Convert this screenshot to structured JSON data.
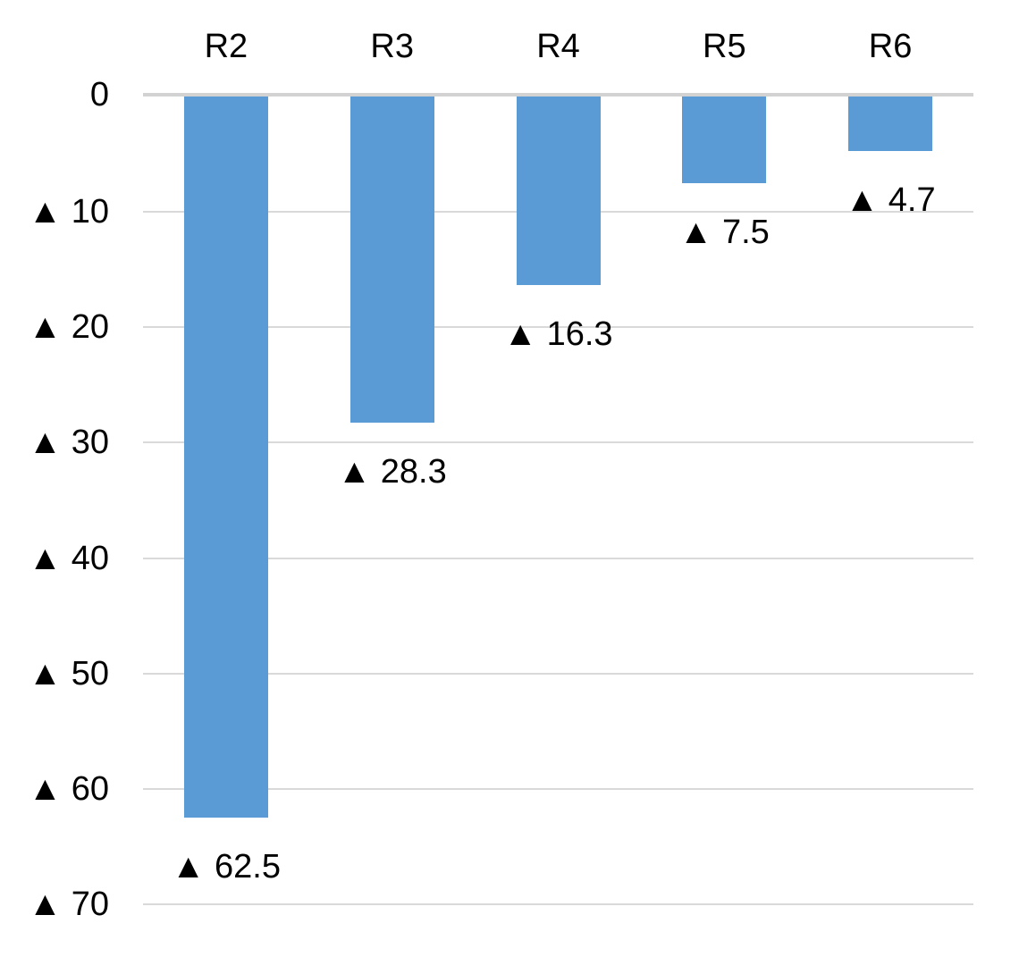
{
  "chart_data": {
    "type": "bar",
    "title": "",
    "xlabel": "",
    "ylabel": "",
    "legend": "none",
    "grid": true,
    "orientation": "vertical-down",
    "categories": [
      "R2",
      "R3",
      "R4",
      "R5",
      "R6"
    ],
    "values": [
      -62.5,
      -28.3,
      -16.3,
      -7.5,
      -4.7
    ],
    "data_labels": [
      "▲ 62.5",
      "▲ 28.3",
      "▲ 16.3",
      "▲ 7.5",
      "▲ 4.7"
    ],
    "y_axis": {
      "direction": "down",
      "negative_marker": "▲",
      "range_shown": [
        0,
        70
      ],
      "ticks": [
        0,
        10,
        20,
        30,
        40,
        50,
        60,
        70
      ],
      "tick_labels": [
        "0",
        "▲ 10",
        "▲ 20",
        "▲ 30",
        "▲ 40",
        "▲ 50",
        "▲ 60",
        "▲ 70"
      ]
    },
    "colors": {
      "bar": "#5B9BD5",
      "gridline": "#D9D9D9",
      "zero_line": "#D2D2D2",
      "text": "#000000",
      "background": "#FFFFFF"
    }
  }
}
